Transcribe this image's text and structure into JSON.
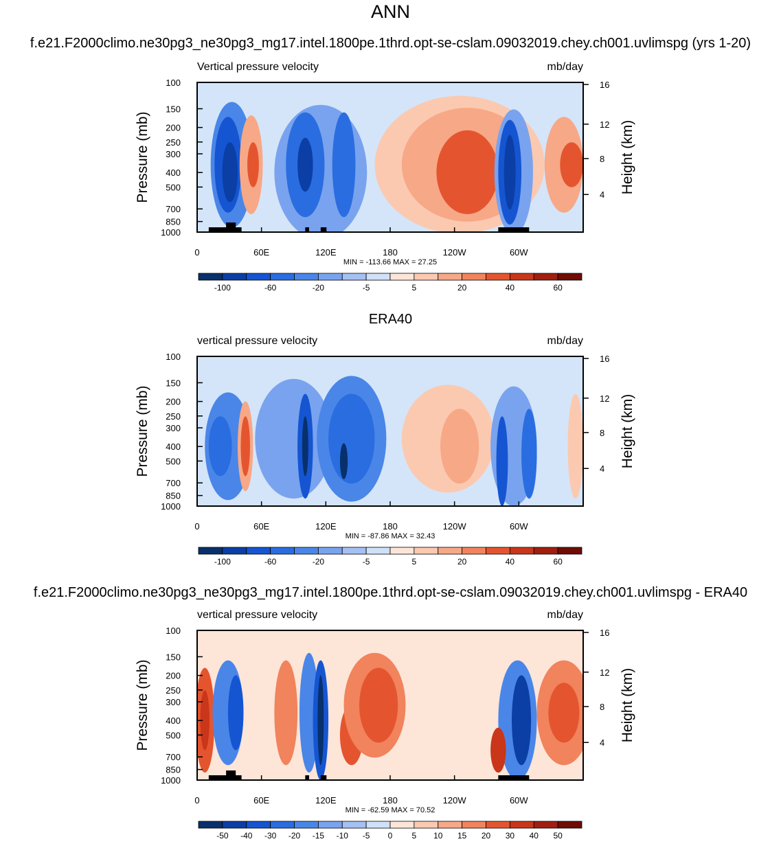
{
  "page": {
    "season": "ANN"
  },
  "chart_data": [
    {
      "type": "heatmap",
      "title": "f.e21.F2000climo.ne30pg3_ne30pg3_mg17.intel.1800pe.1thrd.opt-se-cslam.09032019.chey.ch001.uvlimspg (yrs 1-20)",
      "left_label": "Vertical pressure velocity",
      "right_label": "mb/day",
      "ylabel": "Pressure (mb)",
      "ylabel_right": "Height (km)",
      "x_ticks": [
        "0",
        "60E",
        "120E",
        "180",
        "120W",
        "60W"
      ],
      "y_ticks": [
        "100",
        "150",
        "200",
        "250",
        "300",
        "400",
        "500",
        "700",
        "850",
        "1000"
      ],
      "height_ticks": [
        "4",
        "8",
        "12",
        "16"
      ],
      "stats": "MIN = -113.66  MAX =  27.25",
      "min": -113.66,
      "max": 27.25,
      "colorbar_labels": [
        "-100",
        "-60",
        "-20",
        "-5",
        "5",
        "20",
        "40",
        "60"
      ]
    },
    {
      "type": "heatmap",
      "title": "ERA40",
      "left_label": "vertical pressure velocity",
      "right_label": "mb/day",
      "ylabel": "Pressure (mb)",
      "ylabel_right": "Height (km)",
      "x_ticks": [
        "0",
        "60E",
        "120E",
        "180",
        "120W",
        "60W"
      ],
      "y_ticks": [
        "100",
        "150",
        "200",
        "250",
        "300",
        "400",
        "500",
        "700",
        "850",
        "1000"
      ],
      "height_ticks": [
        "4",
        "8",
        "12",
        "16"
      ],
      "stats": "MIN = -87.86  MAX =  32.43",
      "min": -87.86,
      "max": 32.43,
      "colorbar_labels": [
        "-100",
        "-60",
        "-20",
        "-5",
        "5",
        "20",
        "40",
        "60"
      ]
    },
    {
      "type": "heatmap",
      "title": "f.e21.F2000climo.ne30pg3_ne30pg3_mg17.intel.1800pe.1thrd.opt-se-cslam.09032019.chey.ch001.uvlimspg - ERA40",
      "left_label": "vertical pressure velocity",
      "right_label": "mb/day",
      "ylabel": "Pressure (mb)",
      "ylabel_right": "Height (km)",
      "x_ticks": [
        "0",
        "60E",
        "120E",
        "180",
        "120W",
        "60W"
      ],
      "y_ticks": [
        "100",
        "150",
        "200",
        "250",
        "300",
        "400",
        "500",
        "700",
        "850",
        "1000"
      ],
      "height_ticks": [
        "4",
        "8",
        "12",
        "16"
      ],
      "stats": "MIN = -62.59  MAX =  70.52",
      "min": -62.59,
      "max": 70.52,
      "colorbar_labels": [
        "-50",
        "-40",
        "-30",
        "-20",
        "-15",
        "-10",
        "-5",
        "0",
        "5",
        "10",
        "15",
        "20",
        "30",
        "40",
        "50"
      ]
    }
  ],
  "colors": {
    "colorbar_16": [
      "#08306b",
      "#0b3fa6",
      "#1555d1",
      "#2a6de0",
      "#4a86e8",
      "#79a3ee",
      "#a5c0f3",
      "#cfe0f8",
      "#fde5d8",
      "#fbc9b0",
      "#f7a887",
      "#f1835d",
      "#e4552f",
      "#c9361a",
      "#a01f10",
      "#6e0c06"
    ],
    "background_level": "#d4e5f9"
  }
}
